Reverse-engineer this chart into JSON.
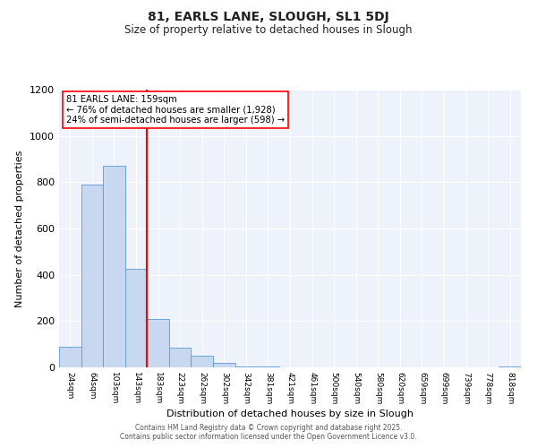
{
  "title": "81, EARLS LANE, SLOUGH, SL1 5DJ",
  "subtitle": "Size of property relative to detached houses in Slough",
  "xlabel": "Distribution of detached houses by size in Slough",
  "ylabel": "Number of detached properties",
  "bar_labels": [
    "24sqm",
    "64sqm",
    "103sqm",
    "143sqm",
    "183sqm",
    "223sqm",
    "262sqm",
    "302sqm",
    "342sqm",
    "381sqm",
    "421sqm",
    "461sqm",
    "500sqm",
    "540sqm",
    "580sqm",
    "620sqm",
    "659sqm",
    "699sqm",
    "739sqm",
    "778sqm",
    "818sqm"
  ],
  "bar_values": [
    90,
    790,
    870,
    425,
    210,
    85,
    50,
    20,
    5,
    2,
    1,
    0,
    0,
    0,
    0,
    0,
    0,
    0,
    0,
    0,
    5
  ],
  "bar_color": "#c8d8f0",
  "bar_edge_color": "#5b9bd5",
  "vline_x_idx": 3,
  "vline_color": "red",
  "annotation_text": "81 EARLS LANE: 159sqm\n← 76% of detached houses are smaller (1,928)\n24% of semi-detached houses are larger (598) →",
  "annotation_box_color": "white",
  "annotation_box_edge_color": "red",
  "ylim": [
    0,
    1200
  ],
  "yticks": [
    0,
    200,
    400,
    600,
    800,
    1000,
    1200
  ],
  "footer_line1": "Contains HM Land Registry data © Crown copyright and database right 2025.",
  "footer_line2": "Contains public sector information licensed under the Open Government Licence v3.0.",
  "background_color": "#eef2fa",
  "grid_color": "#ffffff",
  "fig_bg_color": "#ffffff"
}
